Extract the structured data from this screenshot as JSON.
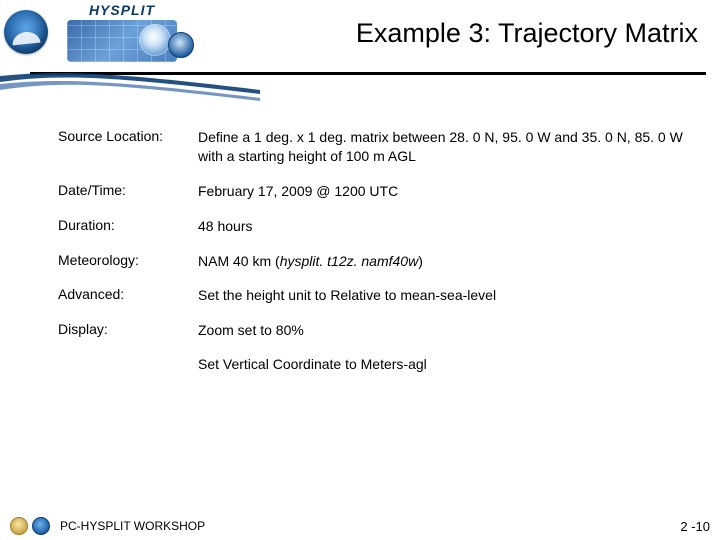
{
  "header": {
    "app_name": "HYSPLIT",
    "title": "Example 3: Trajectory Matrix"
  },
  "rows": [
    {
      "label": "Source Location:",
      "value": "Define a 1 deg. x 1 deg. matrix between 28. 0 N, 95. 0 W and 35. 0 N, 85. 0 W with a starting height of 100 m AGL"
    },
    {
      "label": "Date/Time:",
      "value": "February 17, 2009 @ 1200 UTC"
    },
    {
      "label": "Duration:",
      "value": "48 hours"
    },
    {
      "label": "Meteorology:",
      "value_html": "NAM 40 km (<em>hysplit. t12z. namf40w</em>)"
    },
    {
      "label": "Advanced:",
      "value": "Set the height unit to Relative to mean-sea-level"
    },
    {
      "label": "Display:",
      "value": "Zoom set to 80%"
    }
  ],
  "extra": "Set Vertical Coordinate to Meters-agl",
  "footer": {
    "text": "PC-HYSPLIT WORKSHOP",
    "page": "2 -10"
  },
  "colors": {
    "rule": "#000000",
    "title": "#000000",
    "text": "#000000"
  }
}
